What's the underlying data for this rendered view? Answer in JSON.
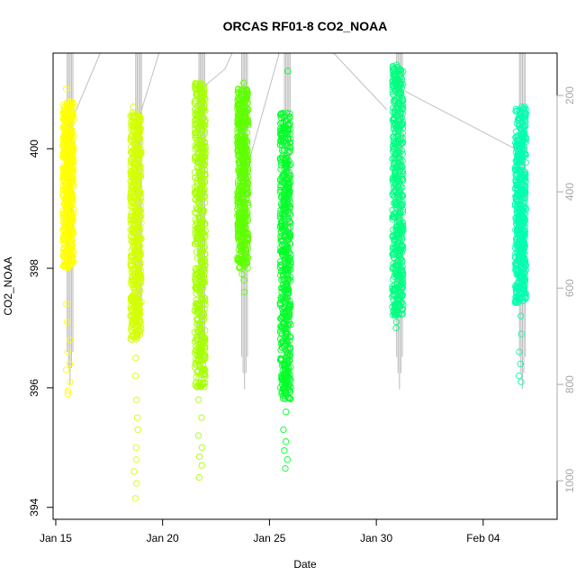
{
  "chart_data": {
    "type": "scatter",
    "title": "ORCAS RF01-8 CO2_NOAA",
    "xlabel": "Date",
    "ylabel": "CO2_NOAA",
    "x_axis": {
      "type": "date",
      "range": [
        "2016-01-14T21:00",
        "2016-02-07T11:00"
      ],
      "ticks": [
        "2016-01-15",
        "2016-01-20",
        "2016-01-25",
        "2016-01-30",
        "2016-02-04"
      ],
      "tick_labels": [
        "Jan 15",
        "Jan 20",
        "Jan 25",
        "Jan 30",
        "Feb 04"
      ]
    },
    "y_axis": {
      "range": [
        393.8,
        401.6
      ],
      "ticks": [
        394,
        396,
        398,
        400
      ],
      "tick_labels": [
        "394",
        "396",
        "398",
        "400"
      ]
    },
    "secondary_y_axis": {
      "side": "right",
      "reversed": true,
      "range": [
        1080,
        112
      ],
      "ticks": [
        200,
        400,
        600,
        800,
        1000
      ],
      "tick_labels": [
        "200",
        "400",
        "600",
        "800",
        "1000"
      ],
      "color": "#a8a8a8"
    },
    "grid": false,
    "legend": "none",
    "series": [
      {
        "date": "2016-01-15T14:00",
        "color": "#ffff00",
        "dense_range": [
          398.0,
          400.8
        ],
        "sparse_points": [
          397.4,
          397.1,
          396.8,
          396.6,
          396.4,
          396.3,
          396.1,
          395.95,
          395.9
        ],
        "max": 401.0
      },
      {
        "date": "2016-01-18T18:00",
        "color": "#d4ff00",
        "dense_range": [
          396.8,
          400.6
        ],
        "sparse_points": [
          396.5,
          396.2,
          395.8,
          395.5,
          395.3,
          395.0,
          394.8,
          394.6,
          394.4,
          394.15
        ],
        "max": 400.7
      },
      {
        "date": "2016-01-21T18:00",
        "color": "#a6ff00",
        "dense_range": [
          396.0,
          401.1
        ],
        "sparse_points": [
          395.8,
          395.5,
          395.2,
          395.0,
          394.85,
          394.7,
          394.5
        ],
        "max": 401.1
      },
      {
        "date": "2016-01-23T18:00",
        "color": "#60ff00",
        "dense_range": [
          398.0,
          401.0
        ],
        "sparse_points": [
          397.9,
          397.8,
          397.6
        ],
        "max": 401.1
      },
      {
        "date": "2016-01-25T18:00",
        "color": "#00ff28",
        "dense_range": [
          395.8,
          400.6
        ],
        "sparse_points": [
          395.6,
          395.3,
          395.1,
          394.95,
          394.8,
          394.65
        ],
        "max": 401.3
      },
      {
        "date": "2016-01-31T00:00",
        "color": "#00ff82",
        "dense_range": [
          397.2,
          401.4
        ],
        "sparse_points": [
          397.1,
          397.0
        ],
        "max": 401.4
      },
      {
        "date": "2016-02-05T18:00",
        "color": "#00ffb0",
        "dense_range": [
          397.4,
          400.7
        ],
        "sparse_points": [
          397.2,
          396.9,
          396.6,
          396.4,
          396.2,
          396.1
        ],
        "max": 400.7
      }
    ],
    "secondary_series": {
      "name_shown": false,
      "color": "#c0c0c0",
      "type": "line",
      "note_values_are_right_axis": true,
      "flights": [
        {
          "date": "2016-01-15T16:00",
          "min_value": 800,
          "max_value": 112
        },
        {
          "date": "2016-01-18T21:00",
          "min_value": 700,
          "max_value": 112
        },
        {
          "date": "2016-01-21T20:00",
          "min_value": 780,
          "max_value": 112
        },
        {
          "date": "2016-01-23T20:00",
          "min_value": 810,
          "max_value": 112
        },
        {
          "date": "2016-01-25T20:00",
          "min_value": 820,
          "max_value": 112
        },
        {
          "date": "2016-01-31T02:00",
          "min_value": 810,
          "max_value": 112
        },
        {
          "date": "2016-02-05T20:00",
          "min_value": 810,
          "max_value": 112
        }
      ],
      "transit_lines": [
        [
          [
            "2016-01-15T16:00",
            260
          ],
          [
            "2016-01-17T02:00",
            112
          ]
        ],
        [
          [
            "2016-01-18T21:00",
            250
          ],
          [
            "2016-01-19T20:00",
            112
          ]
        ],
        [
          [
            "2016-01-21T20:00",
            185
          ],
          [
            "2016-01-22T22:00",
            145
          ],
          [
            "2016-01-23T06:00",
            112
          ]
        ],
        [
          [
            "2016-01-23T20:00",
            370
          ],
          [
            "2016-01-25T11:00",
            112
          ]
        ],
        [
          [
            "2016-01-25T20:00",
            112
          ],
          [
            "2016-01-25T21:00",
            112
          ]
        ],
        [
          [
            "2016-01-28T00:00",
            112
          ],
          [
            "2016-01-30T12:00",
            230
          ]
        ],
        [
          [
            "2016-01-31T02:00",
            185
          ],
          [
            "2016-02-05T16:00",
            315
          ]
        ]
      ]
    }
  }
}
